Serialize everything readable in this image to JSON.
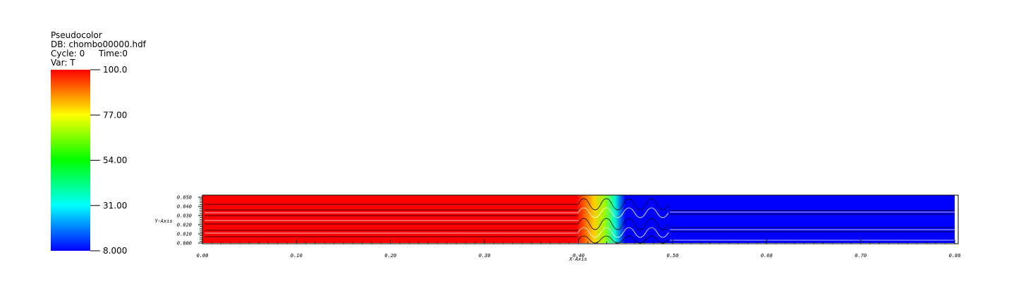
{
  "chart_data": {
    "type": "pseudocolor",
    "plot_name": "Pseudocolor",
    "database": "DB: chombo00000.hdf",
    "cycle": "Cycle: 0",
    "time": "Time:0",
    "variable": "Var: T",
    "colorbar": {
      "range": [
        8,
        100
      ],
      "colors": [
        "#0000ff",
        "#00ffff",
        "#00ff00",
        "#ffff00",
        "#ff0000"
      ],
      "ticks": [
        {
          "value": 100,
          "label": "100.0"
        },
        {
          "value": 77,
          "label": "77.00"
        },
        {
          "value": 54,
          "label": "54.00"
        },
        {
          "value": 31,
          "label": "31.00"
        },
        {
          "value": 8,
          "label": "8.000"
        }
      ]
    },
    "x_label": "X-Axis",
    "y_label": "Y-Axis",
    "xlim": [
      0,
      0.8
    ],
    "ylim": [
      0,
      0.05
    ],
    "xticks": [
      {
        "value": 0,
        "label": "0.00"
      },
      {
        "value": 0.1,
        "label": "0.10"
      },
      {
        "value": 0.2,
        "label": "0.20"
      },
      {
        "value": 0.3,
        "label": "0.30"
      },
      {
        "value": 0.4,
        "label": "0.40"
      },
      {
        "value": 0.5,
        "label": "0.50"
      },
      {
        "value": 0.6,
        "label": "0.60"
      },
      {
        "value": 0.7,
        "label": "0.70"
      },
      {
        "value": 0.8,
        "label": "0.80"
      }
    ],
    "yticks": [
      {
        "value": 0,
        "label": "0.000"
      },
      {
        "value": 0.01,
        "label": "0.010"
      },
      {
        "value": 0.02,
        "label": "0.020"
      },
      {
        "value": 0.03,
        "label": "0.030"
      },
      {
        "value": 0.04,
        "label": "0.040"
      },
      {
        "value": 0.05,
        "label": "0.050"
      }
    ]
  }
}
